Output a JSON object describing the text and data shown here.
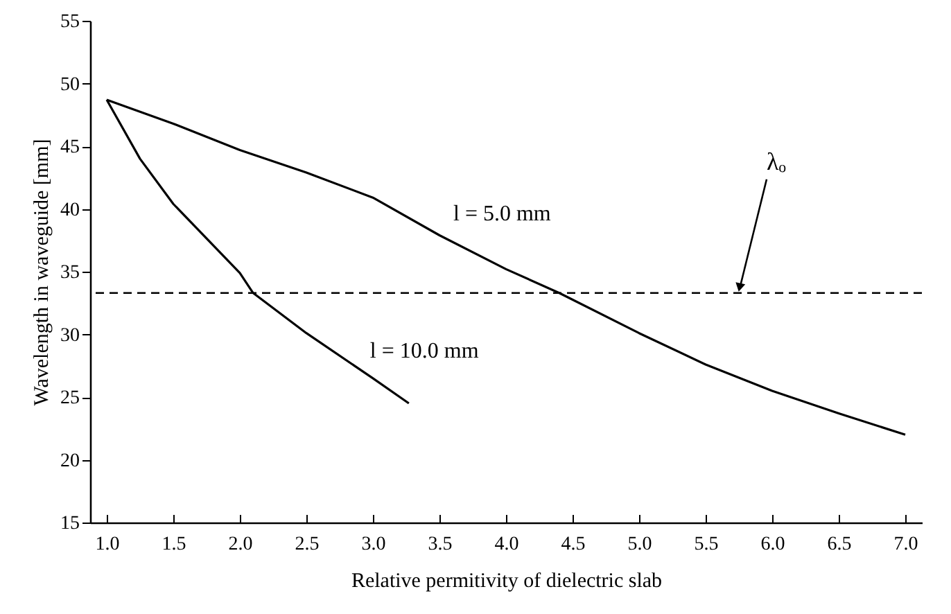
{
  "chart_data": {
    "type": "line",
    "xlabel": "Relative permitivity of dielectric slab",
    "ylabel": "Wavelength in waveguide [mm]",
    "series": [
      {
        "name": "l = 5.0 mm",
        "color": "#000000",
        "x": [
          1.0,
          1.5,
          2.0,
          2.5,
          3.0,
          3.5,
          4.0,
          4.4,
          5.0,
          5.5,
          6.0,
          6.5,
          7.0
        ],
        "values": [
          48.7,
          46.8,
          44.7,
          42.9,
          40.9,
          37.9,
          35.2,
          33.3,
          30.1,
          27.6,
          25.5,
          23.7,
          22.0
        ]
      },
      {
        "name": "l = 10.0 mm",
        "color": "#000000",
        "x": [
          1.0,
          1.25,
          1.5,
          2.0,
          2.1,
          2.5,
          3.0,
          3.27
        ],
        "values": [
          48.7,
          44.0,
          40.4,
          34.9,
          33.3,
          30.1,
          26.5,
          24.5
        ]
      }
    ],
    "ref_lines": [
      {
        "axis": "y",
        "value": 33.3,
        "line_style": "dashed",
        "color": "#000000"
      }
    ],
    "annotations": [
      {
        "text": "λₒ",
        "x": 5.75,
        "y": 33.3
      }
    ],
    "xlim": [
      0.875,
      7.125
    ],
    "ylim": [
      15,
      55
    ],
    "xticks": [
      {
        "value": 1,
        "label": "1.0"
      },
      {
        "value": 1.5,
        "label": "1.5"
      },
      {
        "value": 2,
        "label": "2.0"
      },
      {
        "value": 2.5,
        "label": "2.5"
      },
      {
        "value": 3,
        "label": "3.0"
      },
      {
        "value": 3.5,
        "label": "3.5"
      },
      {
        "value": 4,
        "label": "4.0"
      },
      {
        "value": 4.5,
        "label": "4.5"
      },
      {
        "value": 5,
        "label": "5.0"
      },
      {
        "value": 5.5,
        "label": "5.5"
      },
      {
        "value": 6,
        "label": "6.0"
      },
      {
        "value": 6.5,
        "label": "6.5"
      },
      {
        "value": 7,
        "label": "7.0"
      }
    ],
    "yticks": [
      15,
      20,
      25,
      30,
      35,
      40,
      45,
      50,
      55
    ],
    "grid": false,
    "marker": "none",
    "line_style": "solid"
  }
}
